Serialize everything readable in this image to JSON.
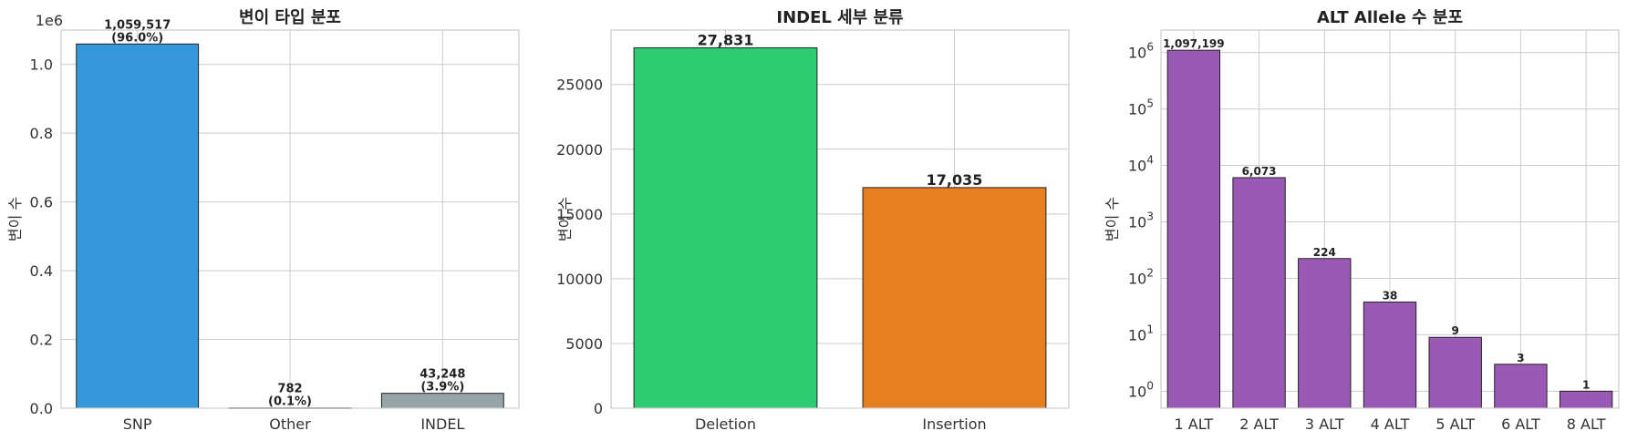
{
  "chart_data": [
    {
      "type": "bar",
      "title": "변이 타입 분포",
      "ylabel": "변이 수",
      "xlabel": "",
      "categories": [
        "SNP",
        "Other",
        "INDEL"
      ],
      "values": [
        1059517,
        782,
        43248
      ],
      "value_labels": [
        "1,059,517",
        "782",
        "43,248"
      ],
      "percent_labels": [
        "(96.0%)",
        "(0.1%)",
        "(3.9%)"
      ],
      "colors": [
        "#3498db",
        "#3498db",
        "#95a5a6"
      ],
      "ylim": [
        0,
        1100000
      ],
      "yticks": [
        0,
        200000,
        400000,
        600000,
        800000,
        1000000
      ],
      "ytick_labels": [
        "0.0",
        "0.2",
        "0.4",
        "0.6",
        "0.8",
        "1.0"
      ],
      "offset_label": "1e6",
      "grid": true
    },
    {
      "type": "bar",
      "title": "INDEL 세부 분류",
      "ylabel": "변이 수",
      "xlabel": "",
      "categories": [
        "Deletion",
        "Insertion"
      ],
      "values": [
        27831,
        17035
      ],
      "value_labels": [
        "27,831",
        "17,035"
      ],
      "colors": [
        "#2ecc71",
        "#e67e22"
      ],
      "ylim": [
        0,
        29200
      ],
      "yticks": [
        0,
        5000,
        10000,
        15000,
        20000,
        25000
      ],
      "ytick_labels": [
        "0",
        "5000",
        "10000",
        "15000",
        "20000",
        "25000"
      ],
      "grid": true
    },
    {
      "type": "bar",
      "title": "ALT Allele 수 분포",
      "ylabel": "변이 수",
      "xlabel": "",
      "yscale": "log",
      "categories": [
        "1 ALT",
        "2 ALT",
        "3 ALT",
        "4 ALT",
        "5 ALT",
        "6 ALT",
        "8 ALT"
      ],
      "values": [
        1097199,
        6073,
        224,
        38,
        9,
        3,
        1
      ],
      "value_labels": [
        "1,097,199",
        "6,073",
        "224",
        "38",
        "9",
        "3",
        "1"
      ],
      "colors": [
        "#9b59b6"
      ],
      "ylim": [
        0.5,
        2500000
      ],
      "yticks": [
        1,
        10,
        100,
        1000,
        10000,
        100000,
        1000000
      ],
      "ytick_base": "10",
      "ytick_exponents": [
        "0",
        "1",
        "2",
        "3",
        "4",
        "5",
        "6"
      ],
      "grid": true
    }
  ]
}
